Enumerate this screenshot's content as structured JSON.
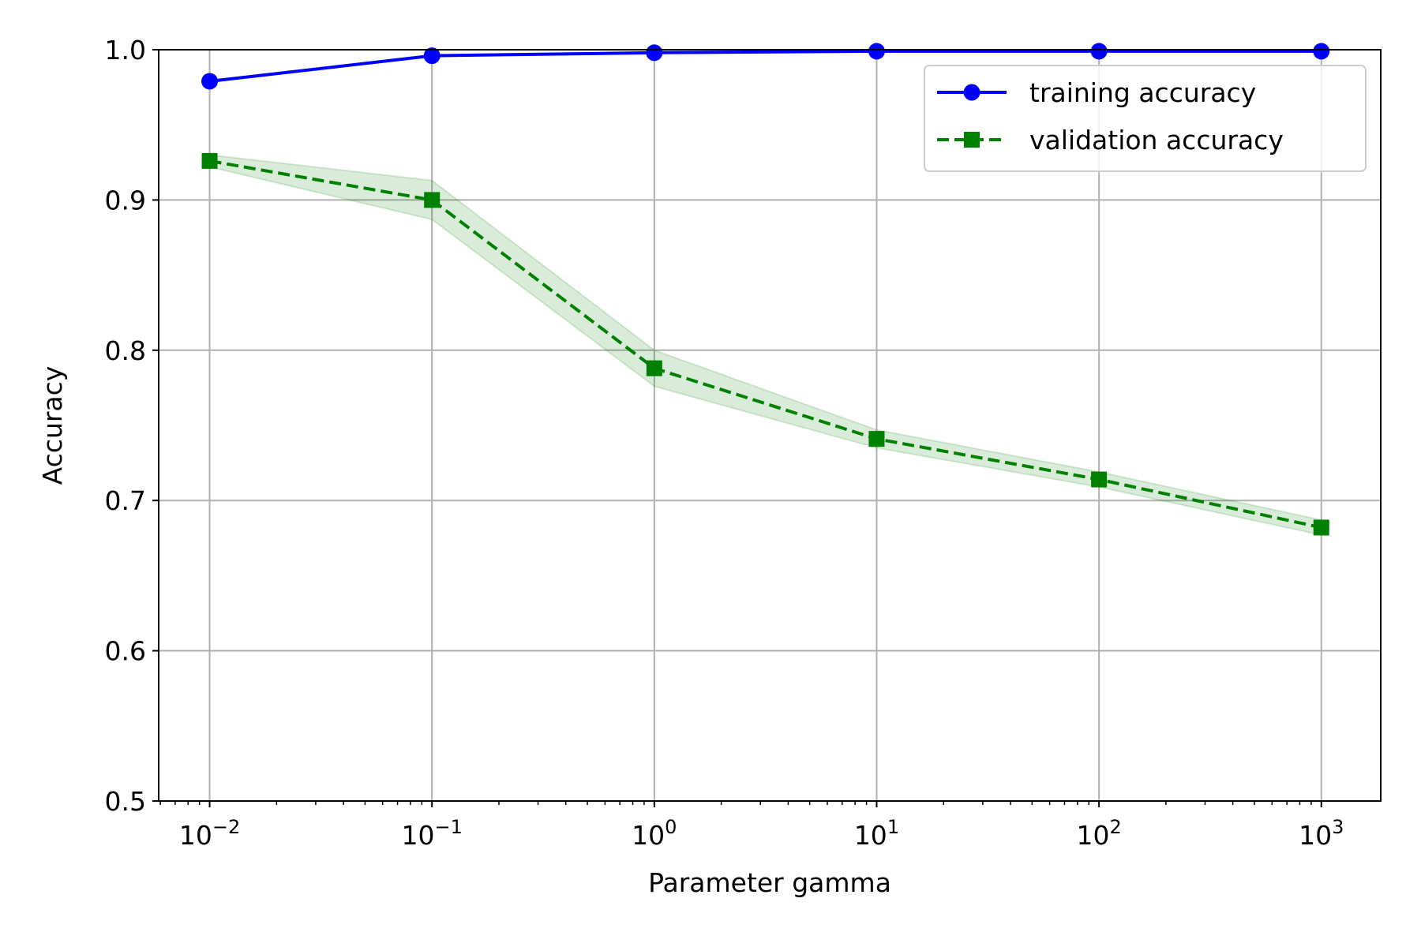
{
  "chart_data": {
    "type": "line",
    "xlabel": "Parameter gamma",
    "ylabel": "Accuracy",
    "x_scale": "log",
    "x": [
      0.01,
      0.1,
      1,
      10,
      100,
      1000
    ],
    "xticks": [
      {
        "value": 0.01,
        "base": "10",
        "exp": "−2"
      },
      {
        "value": 0.1,
        "base": "10",
        "exp": "−1"
      },
      {
        "value": 1,
        "base": "10",
        "exp": "0"
      },
      {
        "value": 10,
        "base": "10",
        "exp": "1"
      },
      {
        "value": 100,
        "base": "10",
        "exp": "2"
      },
      {
        "value": 1000,
        "base": "10",
        "exp": "3"
      }
    ],
    "xlim": [
      0.0059,
      1850
    ],
    "ylim": [
      0.5,
      1.0
    ],
    "yticks": [
      {
        "value": 0.5,
        "label": "0.5"
      },
      {
        "value": 0.6,
        "label": "0.6"
      },
      {
        "value": 0.7,
        "label": "0.7"
      },
      {
        "value": 0.8,
        "label": "0.8"
      },
      {
        "value": 0.9,
        "label": "0.9"
      },
      {
        "value": 1.0,
        "label": "1.0"
      }
    ],
    "grid": true,
    "legend_position": "top-right",
    "series": [
      {
        "name": "training accuracy",
        "values": [
          0.979,
          0.996,
          0.998,
          0.999,
          0.999,
          0.999
        ],
        "color": "#0000ff",
        "marker": "circle",
        "line_style": "solid"
      },
      {
        "name": "validation accuracy",
        "values": [
          0.926,
          0.9,
          0.788,
          0.741,
          0.714,
          0.682
        ],
        "lower": [
          0.922,
          0.887,
          0.776,
          0.735,
          0.709,
          0.677
        ],
        "upper": [
          0.93,
          0.913,
          0.8,
          0.747,
          0.719,
          0.687
        ],
        "color": "#008000",
        "band_color": "#008000",
        "marker": "square",
        "line_style": "dashed"
      }
    ]
  }
}
